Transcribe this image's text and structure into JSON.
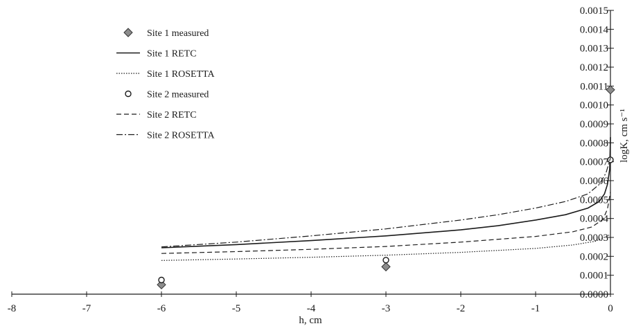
{
  "chart_data": {
    "type": "line",
    "xlabel": "h, cm",
    "ylabel": "logK, cm s⁻¹",
    "xlim": [
      -8,
      0
    ],
    "ylim": [
      0,
      0.0015
    ],
    "x_ticks": [
      "-8",
      "-7",
      "-6",
      "-5",
      "-4",
      "-3",
      "-2",
      "-1",
      "0"
    ],
    "y_ticks": [
      "0.0000",
      "0.0001",
      "0.0002",
      "0.0003",
      "0.0004",
      "0.0005",
      "0.0006",
      "0.0007",
      "0.0008",
      "0.0009",
      "0.0010",
      "0.0011",
      "0.0012",
      "0.0013",
      "0.0014",
      "0.0015"
    ],
    "grid": false,
    "legend_position": "top-left",
    "series": [
      {
        "name": "Site 1 measured",
        "kind": "points",
        "marker": "diamond",
        "x": [
          -6,
          -3,
          0
        ],
        "y": [
          5e-05,
          0.000145,
          0.00108
        ]
      },
      {
        "name": "Site 1 RETC",
        "kind": "line",
        "dash": "solid",
        "x": [
          -6,
          -5,
          -4,
          -3,
          -2,
          -1.5,
          -1,
          -0.6,
          -0.3,
          -0.15,
          -0.08,
          -0.04,
          -0.01,
          0
        ],
        "y": [
          0.000245,
          0.000262,
          0.000283,
          0.000308,
          0.00034,
          0.000362,
          0.000392,
          0.00042,
          0.000455,
          0.00049,
          0.00053,
          0.00058,
          0.00066,
          0.00083
        ]
      },
      {
        "name": "Site 1 ROSETTA",
        "kind": "line",
        "dash": "dotted",
        "x": [
          -6,
          -5,
          -4,
          -3,
          -2,
          -1,
          -0.5,
          -0.2,
          0
        ],
        "y": [
          0.000178,
          0.000186,
          0.000195,
          0.000206,
          0.000221,
          0.000242,
          0.00026,
          0.00028,
          0.000315
        ]
      },
      {
        "name": "Site 2 measured",
        "kind": "points",
        "marker": "circle",
        "x": [
          -6,
          -3,
          0
        ],
        "y": [
          7.5e-05,
          0.00018,
          0.00071
        ]
      },
      {
        "name": "Site 2 RETC",
        "kind": "line",
        "dash": "dashed",
        "x": [
          -6,
          -5,
          -4,
          -3,
          -2,
          -1,
          -0.5,
          -0.25,
          -0.1,
          -0.04,
          0
        ],
        "y": [
          0.000215,
          0.000225,
          0.000237,
          0.000252,
          0.000275,
          0.000305,
          0.00033,
          0.000355,
          0.000395,
          0.00045,
          0.00054
        ]
      },
      {
        "name": "Site 2 ROSETTA",
        "kind": "line",
        "dash": "dashdot",
        "x": [
          -6,
          -5,
          -4,
          -3,
          -2,
          -1.5,
          -1,
          -0.6,
          -0.3,
          -0.15,
          -0.06,
          0
        ],
        "y": [
          0.00025,
          0.000275,
          0.000308,
          0.000345,
          0.000392,
          0.00042,
          0.000455,
          0.00049,
          0.00053,
          0.00058,
          0.00064,
          0.00072
        ]
      }
    ]
  }
}
